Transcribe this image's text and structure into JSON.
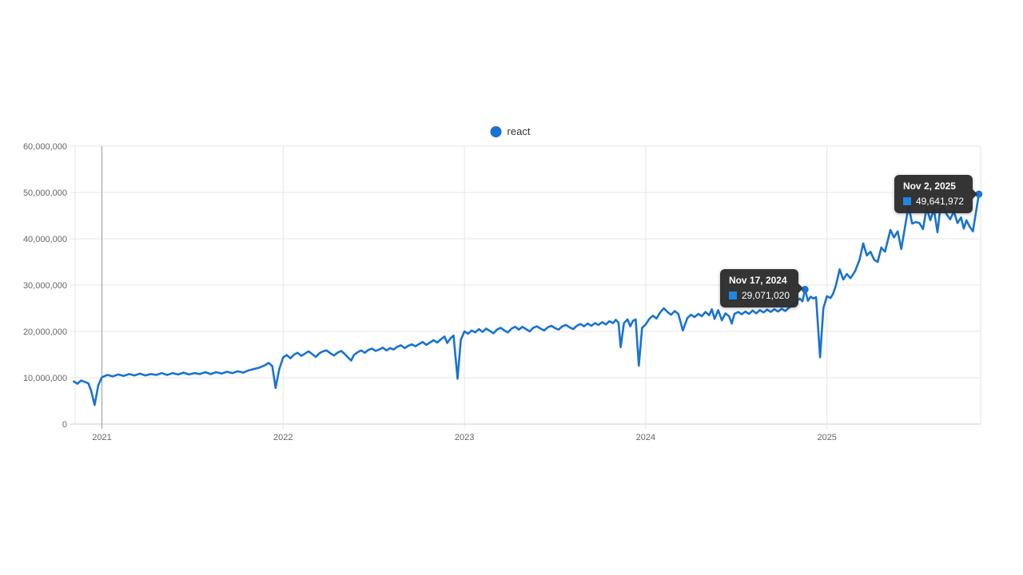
{
  "page": {
    "background": "#ffffff"
  },
  "legend": {
    "label": "react",
    "marker_color": "#1973d2"
  },
  "y_axis": {
    "tick_labels": [
      "0",
      "10,000,000",
      "20,000,000",
      "30,000,000",
      "40,000,000",
      "50,000,000",
      "60,000,000"
    ]
  },
  "x_axis": {
    "tick_labels": [
      "2021",
      "2022",
      "2023",
      "2024",
      "2025"
    ]
  },
  "tooltips": [
    {
      "date": "Nov 17, 2024",
      "value": "29,071,020",
      "square_color": "#1e87e5"
    },
    {
      "date": "Nov 2, 2025",
      "value": "49,641,972",
      "square_color": "#1e87e5"
    }
  ],
  "chart_data": {
    "type": "line",
    "title": "",
    "xlabel": "",
    "ylabel": "",
    "unit": "millions of weekly downloads",
    "x_unit": "decimal year",
    "ylim": [
      0,
      60000000
    ],
    "xlim_years": [
      2020.83,
      2025.87
    ],
    "grid": true,
    "legend_position": "top-center",
    "line_color": "#1973d2",
    "grid_color": "#e6e6e6",
    "axis_color": "#cccccc",
    "crosshair_year": 2021,
    "crosshair_color": "#999999",
    "highlighted_points": [
      {
        "date": "Nov 17, 2024",
        "x_year": 2024.879,
        "value": 29071020
      },
      {
        "date": "Nov 2, 2025",
        "x_year": 2025.838,
        "value": 49641972
      }
    ],
    "series": [
      {
        "name": "react",
        "points": [
          [
            2020.845,
            9.2
          ],
          [
            2020.865,
            8.7
          ],
          [
            2020.885,
            9.4
          ],
          [
            2020.905,
            9.1
          ],
          [
            2020.925,
            8.8
          ],
          [
            2020.94,
            7.3
          ],
          [
            2020.96,
            4.1
          ],
          [
            2020.98,
            8.4
          ],
          [
            2021.0,
            10.1
          ],
          [
            2021.03,
            10.6
          ],
          [
            2021.06,
            10.3
          ],
          [
            2021.09,
            10.7
          ],
          [
            2021.12,
            10.4
          ],
          [
            2021.15,
            10.8
          ],
          [
            2021.18,
            10.5
          ],
          [
            2021.21,
            10.9
          ],
          [
            2021.24,
            10.5
          ],
          [
            2021.27,
            10.8
          ],
          [
            2021.3,
            10.6
          ],
          [
            2021.33,
            11.0
          ],
          [
            2021.36,
            10.6
          ],
          [
            2021.39,
            11.0
          ],
          [
            2021.42,
            10.7
          ],
          [
            2021.45,
            11.1
          ],
          [
            2021.48,
            10.7
          ],
          [
            2021.51,
            11.0
          ],
          [
            2021.54,
            10.8
          ],
          [
            2021.57,
            11.2
          ],
          [
            2021.6,
            10.8
          ],
          [
            2021.63,
            11.2
          ],
          [
            2021.66,
            10.9
          ],
          [
            2021.69,
            11.3
          ],
          [
            2021.72,
            11.0
          ],
          [
            2021.75,
            11.4
          ],
          [
            2021.78,
            11.1
          ],
          [
            2021.81,
            11.6
          ],
          [
            2021.84,
            11.9
          ],
          [
            2021.87,
            12.2
          ],
          [
            2021.9,
            12.7
          ],
          [
            2021.92,
            13.2
          ],
          [
            2021.94,
            12.5
          ],
          [
            2021.958,
            7.8
          ],
          [
            2021.978,
            11.8
          ],
          [
            2022.0,
            14.4
          ],
          [
            2022.02,
            14.9
          ],
          [
            2022.04,
            14.2
          ],
          [
            2022.06,
            15.0
          ],
          [
            2022.08,
            15.4
          ],
          [
            2022.1,
            14.7
          ],
          [
            2022.12,
            15.2
          ],
          [
            2022.14,
            15.7
          ],
          [
            2022.16,
            15.1
          ],
          [
            2022.18,
            14.5
          ],
          [
            2022.2,
            15.3
          ],
          [
            2022.22,
            15.7
          ],
          [
            2022.24,
            15.9
          ],
          [
            2022.26,
            15.3
          ],
          [
            2022.28,
            14.8
          ],
          [
            2022.3,
            15.4
          ],
          [
            2022.32,
            15.8
          ],
          [
            2022.34,
            15.1
          ],
          [
            2022.36,
            14.3
          ],
          [
            2022.375,
            13.7
          ],
          [
            2022.39,
            14.9
          ],
          [
            2022.41,
            15.5
          ],
          [
            2022.43,
            15.9
          ],
          [
            2022.45,
            15.4
          ],
          [
            2022.47,
            16.0
          ],
          [
            2022.49,
            16.3
          ],
          [
            2022.51,
            15.8
          ],
          [
            2022.53,
            16.1
          ],
          [
            2022.55,
            16.5
          ],
          [
            2022.57,
            15.9
          ],
          [
            2022.59,
            16.4
          ],
          [
            2022.61,
            16.1
          ],
          [
            2022.63,
            16.7
          ],
          [
            2022.65,
            17.0
          ],
          [
            2022.67,
            16.4
          ],
          [
            2022.69,
            16.9
          ],
          [
            2022.71,
            17.2
          ],
          [
            2022.73,
            16.8
          ],
          [
            2022.75,
            17.3
          ],
          [
            2022.77,
            17.7
          ],
          [
            2022.79,
            17.1
          ],
          [
            2022.81,
            17.6
          ],
          [
            2022.83,
            18.1
          ],
          [
            2022.85,
            17.6
          ],
          [
            2022.87,
            18.3
          ],
          [
            2022.89,
            18.9
          ],
          [
            2022.905,
            17.5
          ],
          [
            2022.925,
            18.6
          ],
          [
            2022.94,
            19.1
          ],
          [
            2022.962,
            9.8
          ],
          [
            2022.98,
            18.2
          ],
          [
            2023.0,
            20.0
          ],
          [
            2023.02,
            19.5
          ],
          [
            2023.04,
            20.2
          ],
          [
            2023.06,
            19.8
          ],
          [
            2023.08,
            20.5
          ],
          [
            2023.1,
            19.9
          ],
          [
            2023.12,
            20.6
          ],
          [
            2023.14,
            20.1
          ],
          [
            2023.16,
            19.6
          ],
          [
            2023.18,
            20.4
          ],
          [
            2023.2,
            20.8
          ],
          [
            2023.22,
            20.2
          ],
          [
            2023.24,
            19.8
          ],
          [
            2023.26,
            20.6
          ],
          [
            2023.28,
            21.0
          ],
          [
            2023.3,
            20.4
          ],
          [
            2023.32,
            21.0
          ],
          [
            2023.34,
            20.5
          ],
          [
            2023.36,
            20.0
          ],
          [
            2023.38,
            20.8
          ],
          [
            2023.4,
            21.1
          ],
          [
            2023.42,
            20.6
          ],
          [
            2023.44,
            20.2
          ],
          [
            2023.46,
            20.9
          ],
          [
            2023.48,
            21.2
          ],
          [
            2023.5,
            20.7
          ],
          [
            2023.52,
            20.4
          ],
          [
            2023.54,
            21.1
          ],
          [
            2023.56,
            21.4
          ],
          [
            2023.58,
            20.9
          ],
          [
            2023.6,
            20.5
          ],
          [
            2023.62,
            21.2
          ],
          [
            2023.64,
            21.6
          ],
          [
            2023.66,
            21.1
          ],
          [
            2023.68,
            21.7
          ],
          [
            2023.7,
            21.2
          ],
          [
            2023.72,
            21.8
          ],
          [
            2023.74,
            21.4
          ],
          [
            2023.76,
            22.0
          ],
          [
            2023.78,
            21.5
          ],
          [
            2023.8,
            22.2
          ],
          [
            2023.82,
            21.8
          ],
          [
            2023.835,
            22.5
          ],
          [
            2023.85,
            21.9
          ],
          [
            2023.862,
            16.6
          ],
          [
            2023.88,
            21.8
          ],
          [
            2023.9,
            22.6
          ],
          [
            2023.915,
            21.1
          ],
          [
            2023.93,
            22.3
          ],
          [
            2023.945,
            22.6
          ],
          [
            2023.962,
            12.6
          ],
          [
            2023.98,
            20.8
          ],
          [
            2024.0,
            21.5
          ],
          [
            2024.02,
            22.7
          ],
          [
            2024.04,
            23.4
          ],
          [
            2024.06,
            22.8
          ],
          [
            2024.08,
            24.1
          ],
          [
            2024.1,
            25.0
          ],
          [
            2024.12,
            24.2
          ],
          [
            2024.14,
            23.6
          ],
          [
            2024.16,
            24.4
          ],
          [
            2024.18,
            23.8
          ],
          [
            2024.205,
            20.2
          ],
          [
            2024.23,
            22.9
          ],
          [
            2024.25,
            23.6
          ],
          [
            2024.27,
            23.1
          ],
          [
            2024.29,
            23.8
          ],
          [
            2024.31,
            23.3
          ],
          [
            2024.33,
            24.2
          ],
          [
            2024.35,
            23.5
          ],
          [
            2024.365,
            24.8
          ],
          [
            2024.38,
            22.7
          ],
          [
            2024.4,
            24.6
          ],
          [
            2024.42,
            22.4
          ],
          [
            2024.44,
            23.9
          ],
          [
            2024.46,
            23.3
          ],
          [
            2024.475,
            21.7
          ],
          [
            2024.49,
            23.8
          ],
          [
            2024.51,
            24.2
          ],
          [
            2024.53,
            23.7
          ],
          [
            2024.55,
            24.3
          ],
          [
            2024.57,
            23.8
          ],
          [
            2024.59,
            24.5
          ],
          [
            2024.61,
            23.9
          ],
          [
            2024.63,
            24.6
          ],
          [
            2024.65,
            24.1
          ],
          [
            2024.67,
            24.7
          ],
          [
            2024.69,
            24.2
          ],
          [
            2024.71,
            24.8
          ],
          [
            2024.73,
            24.3
          ],
          [
            2024.75,
            24.9
          ],
          [
            2024.77,
            24.4
          ],
          [
            2024.79,
            25.1
          ],
          [
            2024.81,
            25.6
          ],
          [
            2024.83,
            26.4
          ],
          [
            2024.85,
            27.1
          ],
          [
            2024.865,
            26.5
          ],
          [
            2024.879,
            29.071
          ],
          [
            2024.895,
            26.6
          ],
          [
            2024.91,
            27.5
          ],
          [
            2024.925,
            27.1
          ],
          [
            2024.94,
            27.4
          ],
          [
            2024.962,
            14.4
          ],
          [
            2024.98,
            25.0
          ],
          [
            2025.0,
            27.6
          ],
          [
            2025.02,
            27.2
          ],
          [
            2025.035,
            28.2
          ],
          [
            2025.05,
            30.0
          ],
          [
            2025.07,
            33.4
          ],
          [
            2025.09,
            31.2
          ],
          [
            2025.11,
            32.4
          ],
          [
            2025.13,
            31.5
          ],
          [
            2025.155,
            33.0
          ],
          [
            2025.18,
            35.5
          ],
          [
            2025.2,
            39.0
          ],
          [
            2025.22,
            36.4
          ],
          [
            2025.24,
            37.2
          ],
          [
            2025.26,
            35.5
          ],
          [
            2025.28,
            35.0
          ],
          [
            2025.3,
            38.1
          ],
          [
            2025.32,
            37.2
          ],
          [
            2025.35,
            41.9
          ],
          [
            2025.37,
            40.3
          ],
          [
            2025.39,
            41.6
          ],
          [
            2025.41,
            37.8
          ],
          [
            2025.45,
            47.1
          ],
          [
            2025.47,
            43.3
          ],
          [
            2025.49,
            43.6
          ],
          [
            2025.51,
            43.4
          ],
          [
            2025.53,
            42.1
          ],
          [
            2025.55,
            46.7
          ],
          [
            2025.57,
            44.0
          ],
          [
            2025.59,
            46.4
          ],
          [
            2025.61,
            41.4
          ],
          [
            2025.625,
            46.6
          ],
          [
            2025.64,
            46.9
          ],
          [
            2025.66,
            45.3
          ],
          [
            2025.68,
            44.2
          ],
          [
            2025.7,
            45.9
          ],
          [
            2025.72,
            43.4
          ],
          [
            2025.74,
            44.6
          ],
          [
            2025.755,
            42.2
          ],
          [
            2025.77,
            44.0
          ],
          [
            2025.785,
            42.8
          ],
          [
            2025.805,
            41.6
          ],
          [
            2025.838,
            49.642
          ]
        ]
      }
    ]
  }
}
